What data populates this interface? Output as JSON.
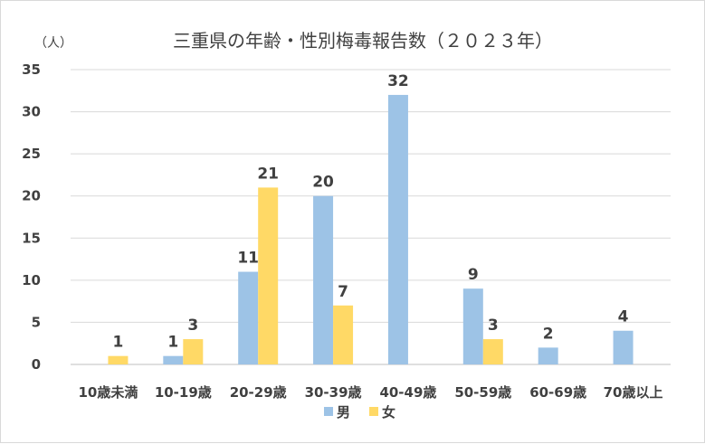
{
  "chart_data": {
    "type": "bar",
    "title": "三重県の年齢・性別梅毒報告数（２０２３年）",
    "unit_label": "（人）",
    "categories": [
      "10歳未満",
      "10-19歳",
      "20-29歳",
      "30-39歳",
      "40-49歳",
      "50-59歳",
      "60-69歳",
      "70歳以上"
    ],
    "series": [
      {
        "name": "男",
        "color": "#9dc3e6",
        "values": [
          0,
          1,
          11,
          20,
          32,
          9,
          2,
          4
        ]
      },
      {
        "name": "女",
        "color": "#ffd966",
        "values": [
          1,
          3,
          21,
          7,
          0,
          3,
          0,
          0
        ]
      }
    ],
    "ylim": [
      0,
      35
    ],
    "yticks": [
      0,
      5,
      10,
      15,
      20,
      25,
      30,
      35
    ],
    "grid": true,
    "legend_position": "bottom"
  }
}
